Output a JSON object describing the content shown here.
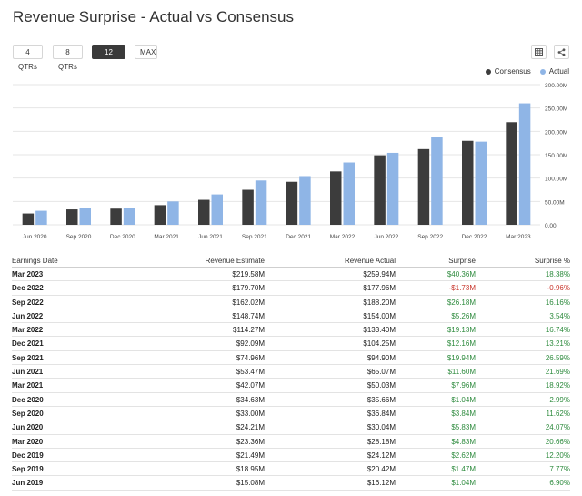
{
  "title": "Revenue Surprise - Actual vs Consensus",
  "periods": [
    {
      "label": "4 QTRs",
      "active": false
    },
    {
      "label": "8 QTRs",
      "active": false
    },
    {
      "label": "12 QTRs",
      "active": true
    },
    {
      "label": "MAX",
      "active": false
    }
  ],
  "icons": {
    "table": "table-icon",
    "share": "share-icon"
  },
  "legend": {
    "consensus": "Consensus",
    "actual": "Actual"
  },
  "colors": {
    "consensus": "#3c3c3c",
    "actual": "#8fb5e6",
    "positive": "#2e8b3e",
    "negative": "#c8352b"
  },
  "chart_data": {
    "type": "bar",
    "title": "Revenue Surprise - Actual vs Consensus",
    "categories": [
      "Jun 2020",
      "Sep 2020",
      "Dec 2020",
      "Mar 2021",
      "Jun 2021",
      "Sep 2021",
      "Dec 2021",
      "Mar 2022",
      "Jun 2022",
      "Sep 2022",
      "Dec 2022",
      "Mar 2023"
    ],
    "series": [
      {
        "name": "Consensus",
        "values": [
          24.21,
          33.0,
          34.63,
          42.07,
          53.47,
          74.96,
          92.09,
          114.27,
          148.74,
          162.02,
          179.7,
          219.58
        ]
      },
      {
        "name": "Actual",
        "values": [
          30.04,
          36.84,
          35.66,
          50.03,
          65.07,
          94.9,
          104.25,
          133.4,
          154.0,
          188.2,
          177.96,
          259.94
        ]
      }
    ],
    "yticks": [
      "0.00",
      "50.00M",
      "100.00M",
      "150.00M",
      "200.00M",
      "250.00M",
      "300.00M"
    ],
    "ylim": [
      0,
      300
    ],
    "ylabel": "",
    "xlabel": "",
    "grid": true,
    "legend_position": "top-right"
  },
  "table": {
    "headers": [
      "Earnings Date",
      "Revenue Estimate",
      "Revenue Actual",
      "Surprise",
      "Surprise %"
    ],
    "rows": [
      {
        "date": "Mar 2023",
        "estimate": "$219.58M",
        "actual": "$259.94M",
        "surprise": "$40.36M",
        "pct": "18.38%",
        "positive": true
      },
      {
        "date": "Dec 2022",
        "estimate": "$179.70M",
        "actual": "$177.96M",
        "surprise": "-$1.73M",
        "pct": "-0.96%",
        "positive": false
      },
      {
        "date": "Sep 2022",
        "estimate": "$162.02M",
        "actual": "$188.20M",
        "surprise": "$26.18M",
        "pct": "16.16%",
        "positive": true
      },
      {
        "date": "Jun 2022",
        "estimate": "$148.74M",
        "actual": "$154.00M",
        "surprise": "$5.26M",
        "pct": "3.54%",
        "positive": true
      },
      {
        "date": "Mar 2022",
        "estimate": "$114.27M",
        "actual": "$133.40M",
        "surprise": "$19.13M",
        "pct": "16.74%",
        "positive": true
      },
      {
        "date": "Dec 2021",
        "estimate": "$92.09M",
        "actual": "$104.25M",
        "surprise": "$12.16M",
        "pct": "13.21%",
        "positive": true
      },
      {
        "date": "Sep 2021",
        "estimate": "$74.96M",
        "actual": "$94.90M",
        "surprise": "$19.94M",
        "pct": "26.59%",
        "positive": true
      },
      {
        "date": "Jun 2021",
        "estimate": "$53.47M",
        "actual": "$65.07M",
        "surprise": "$11.60M",
        "pct": "21.69%",
        "positive": true
      },
      {
        "date": "Mar 2021",
        "estimate": "$42.07M",
        "actual": "$50.03M",
        "surprise": "$7.96M",
        "pct": "18.92%",
        "positive": true
      },
      {
        "date": "Dec 2020",
        "estimate": "$34.63M",
        "actual": "$35.66M",
        "surprise": "$1.04M",
        "pct": "2.99%",
        "positive": true
      },
      {
        "date": "Sep 2020",
        "estimate": "$33.00M",
        "actual": "$36.84M",
        "surprise": "$3.84M",
        "pct": "11.62%",
        "positive": true
      },
      {
        "date": "Jun 2020",
        "estimate": "$24.21M",
        "actual": "$30.04M",
        "surprise": "$5.83M",
        "pct": "24.07%",
        "positive": true
      },
      {
        "date": "Mar 2020",
        "estimate": "$23.36M",
        "actual": "$28.18M",
        "surprise": "$4.83M",
        "pct": "20.66%",
        "positive": true
      },
      {
        "date": "Dec 2019",
        "estimate": "$21.49M",
        "actual": "$24.12M",
        "surprise": "$2.62M",
        "pct": "12.20%",
        "positive": true
      },
      {
        "date": "Sep 2019",
        "estimate": "$18.95M",
        "actual": "$20.42M",
        "surprise": "$1.47M",
        "pct": "7.77%",
        "positive": true
      },
      {
        "date": "Jun 2019",
        "estimate": "$15.08M",
        "actual": "$16.12M",
        "surprise": "$1.04M",
        "pct": "6.90%",
        "positive": true
      }
    ]
  }
}
